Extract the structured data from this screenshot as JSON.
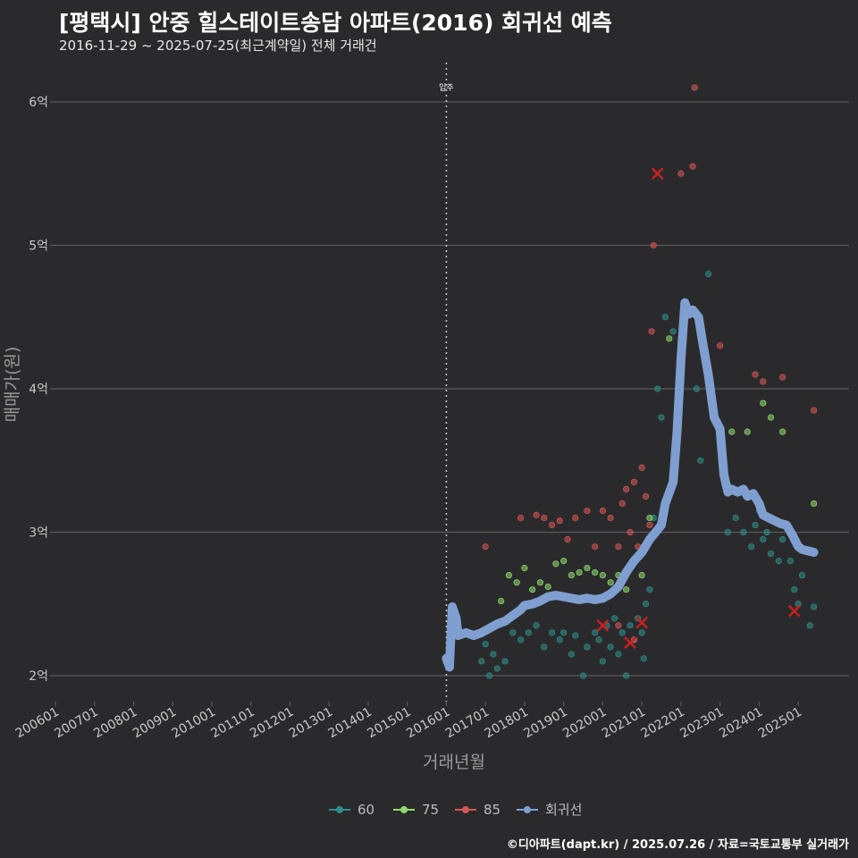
{
  "header": {
    "title": "[평택시] 안중 힐스테이트송담 아파트(2016) 회귀선 예측",
    "subtitle": "2016-11-29 ~ 2025-07-25(최근계약일) 전체 거래건"
  },
  "footer": {
    "credit": "©디아파트(dapt.kr) / 2025.07.26 / 자료=국토교통부 실거래가"
  },
  "colors": {
    "s60": "#2f8f8a",
    "s75": "#8fdc6e",
    "s85": "#d95555",
    "reg": "#7f9fd0",
    "bg": "#2a2a2c",
    "grid": "#5a5a5c"
  },
  "chart_data": {
    "type": "scatter",
    "title": "[평택시] 안중 힐스테이트송담 아파트(2016) 회귀선 예측",
    "xlabel": "거래년월",
    "ylabel": "매매가(원)",
    "xlim": [
      2006.0,
      2026.3
    ],
    "ylim": [
      1.8,
      6.3
    ],
    "x_ticks": [
      "200601",
      "200701",
      "200801",
      "200901",
      "201001",
      "201101",
      "201201",
      "201301",
      "201401",
      "201501",
      "201601",
      "201701",
      "201801",
      "201901",
      "202001",
      "202101",
      "202201",
      "202301",
      "202401",
      "202501"
    ],
    "y_ticks": [
      {
        "v": 2,
        "label": "2억"
      },
      {
        "v": 3,
        "label": "3억"
      },
      {
        "v": 4,
        "label": "4억"
      },
      {
        "v": 5,
        "label": "5억"
      },
      {
        "v": 6,
        "label": "6억"
      }
    ],
    "annotation": {
      "x": 2016.0,
      "label": "입주"
    },
    "legend": [
      {
        "key": "s60",
        "label": "60"
      },
      {
        "key": "s75",
        "label": "75"
      },
      {
        "key": "s85",
        "label": "85"
      },
      {
        "key": "reg",
        "label": "회귀선"
      }
    ],
    "series": [
      {
        "name": "60",
        "key": "s60",
        "points": [
          [
            2016.9,
            2.1
          ],
          [
            2017.0,
            2.22
          ],
          [
            2017.1,
            2.0
          ],
          [
            2017.2,
            2.15
          ],
          [
            2017.3,
            2.05
          ],
          [
            2017.5,
            2.1
          ],
          [
            2017.7,
            2.3
          ],
          [
            2017.9,
            2.25
          ],
          [
            2018.1,
            2.3
          ],
          [
            2018.3,
            2.35
          ],
          [
            2018.5,
            2.2
          ],
          [
            2018.7,
            2.3
          ],
          [
            2018.9,
            2.25
          ],
          [
            2019.0,
            2.3
          ],
          [
            2019.2,
            2.15
          ],
          [
            2019.3,
            2.28
          ],
          [
            2019.5,
            2.0
          ],
          [
            2019.6,
            2.2
          ],
          [
            2019.8,
            2.3
          ],
          [
            2019.9,
            2.25
          ],
          [
            2020.0,
            2.1
          ],
          [
            2020.1,
            2.35
          ],
          [
            2020.2,
            2.2
          ],
          [
            2020.3,
            2.4
          ],
          [
            2020.4,
            2.15
          ],
          [
            2020.5,
            2.3
          ],
          [
            2020.6,
            2.0
          ],
          [
            2020.7,
            2.35
          ],
          [
            2020.8,
            2.25
          ],
          [
            2020.9,
            2.4
          ],
          [
            2021.0,
            2.3
          ],
          [
            2021.05,
            2.12
          ],
          [
            2021.1,
            2.5
          ],
          [
            2021.2,
            2.6
          ],
          [
            2021.3,
            3.1
          ],
          [
            2021.4,
            4.0
          ],
          [
            2021.5,
            3.8
          ],
          [
            2021.6,
            4.5
          ],
          [
            2021.8,
            4.4
          ],
          [
            2022.0,
            4.2
          ],
          [
            2022.4,
            4.0
          ],
          [
            2022.5,
            3.5
          ],
          [
            2022.7,
            4.8
          ],
          [
            2023.2,
            3.0
          ],
          [
            2023.4,
            3.1
          ],
          [
            2023.6,
            3.0
          ],
          [
            2023.8,
            2.9
          ],
          [
            2023.9,
            3.05
          ],
          [
            2024.0,
            3.15
          ],
          [
            2024.1,
            2.95
          ],
          [
            2024.2,
            3.0
          ],
          [
            2024.3,
            2.85
          ],
          [
            2024.5,
            2.8
          ],
          [
            2024.6,
            2.95
          ],
          [
            2024.8,
            2.8
          ],
          [
            2024.9,
            2.6
          ],
          [
            2025.0,
            2.5
          ],
          [
            2025.1,
            2.7
          ],
          [
            2025.3,
            2.35
          ],
          [
            2025.4,
            2.48
          ]
        ]
      },
      {
        "name": "75",
        "key": "s75",
        "points": [
          [
            2017.4,
            2.52
          ],
          [
            2017.6,
            2.7
          ],
          [
            2017.8,
            2.65
          ],
          [
            2018.0,
            2.75
          ],
          [
            2018.2,
            2.6
          ],
          [
            2018.4,
            2.65
          ],
          [
            2018.6,
            2.62
          ],
          [
            2018.8,
            2.78
          ],
          [
            2019.0,
            2.8
          ],
          [
            2019.2,
            2.7
          ],
          [
            2019.4,
            2.72
          ],
          [
            2019.6,
            2.75
          ],
          [
            2019.8,
            2.72
          ],
          [
            2020.0,
            2.7
          ],
          [
            2020.2,
            2.65
          ],
          [
            2020.4,
            2.7
          ],
          [
            2020.6,
            2.6
          ],
          [
            2020.8,
            2.8
          ],
          [
            2021.0,
            2.7
          ],
          [
            2021.2,
            3.1
          ],
          [
            2021.7,
            4.35
          ],
          [
            2023.1,
            3.5
          ],
          [
            2023.3,
            3.7
          ],
          [
            2023.7,
            3.7
          ],
          [
            2024.1,
            3.9
          ],
          [
            2024.3,
            3.8
          ],
          [
            2024.6,
            3.7
          ],
          [
            2025.4,
            3.2
          ]
        ]
      },
      {
        "name": "85",
        "key": "s85",
        "points": [
          [
            2017.0,
            2.9
          ],
          [
            2017.9,
            3.1
          ],
          [
            2018.3,
            3.12
          ],
          [
            2018.5,
            3.1
          ],
          [
            2018.7,
            3.05
          ],
          [
            2018.9,
            3.08
          ],
          [
            2019.1,
            2.95
          ],
          [
            2019.3,
            3.1
          ],
          [
            2019.6,
            3.15
          ],
          [
            2019.8,
            2.9
          ],
          [
            2020.0,
            3.15
          ],
          [
            2020.2,
            3.1
          ],
          [
            2020.4,
            2.9
          ],
          [
            2020.5,
            3.2
          ],
          [
            2020.6,
            3.3
          ],
          [
            2020.7,
            3.0
          ],
          [
            2020.8,
            3.35
          ],
          [
            2020.9,
            2.9
          ],
          [
            2021.0,
            3.45
          ],
          [
            2021.1,
            3.25
          ],
          [
            2021.2,
            3.05
          ],
          [
            2021.25,
            4.4
          ],
          [
            2021.3,
            5.0
          ],
          [
            2022.0,
            5.5
          ],
          [
            2022.3,
            5.55
          ],
          [
            2022.35,
            6.1
          ],
          [
            2023.0,
            4.3
          ],
          [
            2023.9,
            4.1
          ],
          [
            2024.1,
            4.05
          ],
          [
            2024.6,
            4.08
          ],
          [
            2025.4,
            3.85
          ],
          [
            2020.4,
            2.35
          ],
          [
            2020.8,
            2.25
          ]
        ]
      }
    ],
    "markers": [
      {
        "x": 2021.4,
        "y": 5.5,
        "key": "s85"
      },
      {
        "x": 2020.0,
        "y": 2.35,
        "key": "s85"
      },
      {
        "x": 2020.7,
        "y": 2.23,
        "key": "s85"
      },
      {
        "x": 2021.0,
        "y": 2.37,
        "key": "s85"
      },
      {
        "x": 2024.9,
        "y": 2.45,
        "key": "s85"
      }
    ],
    "regression": {
      "name": "회귀선",
      "key": "reg",
      "points": [
        [
          2016.0,
          2.12
        ],
        [
          2016.08,
          2.06
        ],
        [
          2016.15,
          2.48
        ],
        [
          2016.25,
          2.4
        ],
        [
          2016.3,
          2.28
        ],
        [
          2016.5,
          2.3
        ],
        [
          2016.7,
          2.28
        ],
        [
          2016.9,
          2.3
        ],
        [
          2017.1,
          2.33
        ],
        [
          2017.3,
          2.36
        ],
        [
          2017.5,
          2.38
        ],
        [
          2017.7,
          2.42
        ],
        [
          2017.9,
          2.46
        ],
        [
          2018.0,
          2.49
        ],
        [
          2018.2,
          2.5
        ],
        [
          2018.4,
          2.52
        ],
        [
          2018.6,
          2.55
        ],
        [
          2018.8,
          2.56
        ],
        [
          2019.0,
          2.55
        ],
        [
          2019.2,
          2.54
        ],
        [
          2019.4,
          2.53
        ],
        [
          2019.6,
          2.54
        ],
        [
          2019.8,
          2.53
        ],
        [
          2020.0,
          2.54
        ],
        [
          2020.2,
          2.57
        ],
        [
          2020.4,
          2.62
        ],
        [
          2020.6,
          2.72
        ],
        [
          2020.8,
          2.8
        ],
        [
          2021.0,
          2.86
        ],
        [
          2021.2,
          2.95
        ],
        [
          2021.35,
          3.0
        ],
        [
          2021.5,
          3.05
        ],
        [
          2021.6,
          3.2
        ],
        [
          2021.8,
          3.35
        ],
        [
          2021.9,
          3.7
        ],
        [
          2022.0,
          4.2
        ],
        [
          2022.1,
          4.6
        ],
        [
          2022.2,
          4.52
        ],
        [
          2022.3,
          4.55
        ],
        [
          2022.45,
          4.5
        ],
        [
          2022.55,
          4.33
        ],
        [
          2022.7,
          4.1
        ],
        [
          2022.85,
          3.8
        ],
        [
          2023.0,
          3.72
        ],
        [
          2023.1,
          3.4
        ],
        [
          2023.2,
          3.28
        ],
        [
          2023.3,
          3.3
        ],
        [
          2023.45,
          3.28
        ],
        [
          2023.6,
          3.3
        ],
        [
          2023.7,
          3.25
        ],
        [
          2023.85,
          3.27
        ],
        [
          2024.0,
          3.2
        ],
        [
          2024.1,
          3.12
        ],
        [
          2024.25,
          3.1
        ],
        [
          2024.4,
          3.08
        ],
        [
          2024.55,
          3.06
        ],
        [
          2024.7,
          3.05
        ],
        [
          2024.85,
          2.98
        ],
        [
          2025.0,
          2.9
        ],
        [
          2025.1,
          2.88
        ],
        [
          2025.25,
          2.87
        ],
        [
          2025.4,
          2.86
        ]
      ]
    }
  }
}
